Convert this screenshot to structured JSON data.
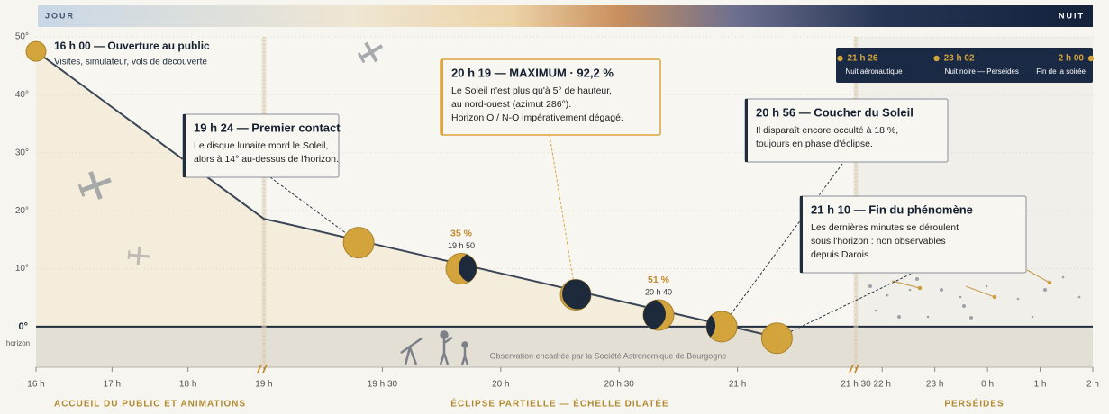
{
  "chart_data": {
    "type": "line",
    "band": {
      "left": "JOUR",
      "right": "NUIT"
    },
    "ylim": [
      -7,
      50
    ],
    "yticks": [
      {
        "value": 50,
        "label": "50°"
      },
      {
        "value": 40,
        "label": "40°"
      },
      {
        "value": 30,
        "label": "30°"
      },
      {
        "value": 20,
        "label": "20°"
      },
      {
        "value": 10,
        "label": "10°"
      },
      {
        "value": 0,
        "label": "0°"
      }
    ],
    "horizon_label": "horizon",
    "xlim": [
      0,
      600
    ],
    "xbreaks": [
      180,
      330
    ],
    "xticks": [
      {
        "value": 0,
        "label": "16 h"
      },
      {
        "value": 60,
        "label": "17 h"
      },
      {
        "value": 120,
        "label": "18 h"
      },
      {
        "value": 180,
        "label": "19 h"
      },
      {
        "value": 210,
        "label": "19 h 30"
      },
      {
        "value": 240,
        "label": "20 h"
      },
      {
        "value": 270,
        "label": "20 h 30"
      },
      {
        "value": 300,
        "label": "21 h"
      },
      {
        "value": 330,
        "label": "21 h 30"
      },
      {
        "value": 360,
        "label": "22 h"
      },
      {
        "value": 420,
        "label": "23 h"
      },
      {
        "value": 480,
        "label": "0 h"
      },
      {
        "value": 540,
        "label": "1 h"
      },
      {
        "value": 600,
        "label": "2 h"
      }
    ],
    "sections": [
      "ACCUEIL DU PUBLIC ET ANIMATIONS",
      "ÉCLIPSE PARTIELLE — ÉCHELLE DILATÉE",
      "PERSÉIDES"
    ],
    "line": {
      "x": [
        0,
        180,
        186,
        313
      ],
      "values": [
        47.5,
        18.6,
        17.7,
        -2.3
      ],
      "color": "#3a4656"
    },
    "phases": {
      "x": [
        204,
        230,
        259,
        280,
        296,
        310
      ],
      "values": [
        14.5,
        10,
        5.5,
        2,
        0,
        -2
      ],
      "pct": [
        null,
        35,
        null,
        51,
        null,
        null
      ],
      "pct_labels": [
        null,
        "35 %",
        null,
        "51 %",
        null,
        null
      ],
      "time_labels": [
        null,
        "19 h 50",
        null,
        "20 h 40",
        null,
        null
      ],
      "sun_color": "#d4a43c",
      "moon_color": "#1c2a3c"
    },
    "start": {
      "title": "16 h 00 — Ouverture au public",
      "text": "Visites, simulateur, vols de découverte"
    },
    "annotations": [
      {
        "title": "19 h 24 — Premier contact",
        "lines": [
          "Le disque lunaire mord le Soleil,",
          "alors à 14° au-dessus de l'horizon."
        ]
      },
      {
        "title": "20 h 19 — MAXIMUM · 92,2 %",
        "lines": [
          "Le Soleil n'est plus qu'à 5° de hauteur,",
          "au nord-ouest (azimut 286°).",
          "Horizon O / N-O impérativement dégagé."
        ]
      },
      {
        "title": "20 h 56 — Coucher du Soleil",
        "lines": [
          "Il disparaît encore occulté à 18 %,",
          "toujours en phase d'éclipse."
        ]
      },
      {
        "title": "21 h 10 — Fin du phénomène",
        "lines": [
          "Les dernières minutes se déroulent",
          "sous l'horizon : non observables",
          "depuis Darois."
        ]
      }
    ],
    "night_events": {
      "x": [
        326,
        422,
        600
      ],
      "labels": [
        "21 h 26",
        "23 h 02",
        "2 h 00"
      ],
      "names": [
        "Nuit aéronautique",
        "Nuit noire — Perséides",
        "Fin de la soirée"
      ]
    },
    "below_note": "Observation encadrée par la Société Astronomique de Bourgogne",
    "grid": true
  }
}
